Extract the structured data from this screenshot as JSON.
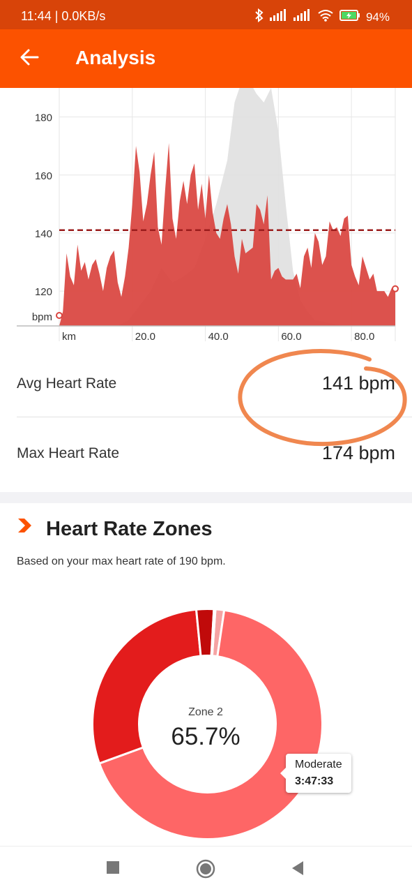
{
  "status": {
    "time_speed": "11:44 | 0.0KB/s",
    "battery": "94%"
  },
  "appbar": {
    "title": "Analysis"
  },
  "chart_data": {
    "type": "area",
    "x_unit": "km",
    "y_unit": "bpm",
    "x_ticks": [
      20.0,
      40.0,
      60.0,
      80.0
    ],
    "x_tick_labels": [
      "km",
      "20.0",
      "40.0",
      "60.0",
      "80.0"
    ],
    "y_ticks": [
      120,
      140,
      160,
      180
    ],
    "ylim": [
      108,
      190
    ],
    "xlim": [
      0,
      92
    ],
    "avg_line": 141,
    "series": [
      {
        "role": "heart rate",
        "color": "#d9453f",
        "x": [
          0,
          1,
          2,
          3,
          4,
          5,
          6,
          7,
          8,
          9,
          10,
          11,
          12,
          13,
          14,
          15,
          16,
          17,
          18,
          19,
          20,
          21,
          22,
          23,
          24,
          25,
          26,
          27,
          28,
          29,
          30,
          31,
          32,
          33,
          34,
          35,
          36,
          37,
          38,
          39,
          40,
          41,
          42,
          43,
          44,
          45,
          46,
          47,
          48,
          49,
          50,
          51,
          52,
          53,
          54,
          55,
          56,
          57,
          58,
          59,
          60,
          61,
          62,
          63,
          64,
          65,
          66,
          67,
          68,
          69,
          70,
          71,
          72,
          73,
          74,
          75,
          76,
          77,
          78,
          79,
          80,
          81,
          82,
          83,
          84,
          85,
          86,
          87,
          88,
          89,
          90,
          91,
          92
        ],
        "y": [
          108,
          113,
          133,
          125,
          122,
          136,
          127,
          130,
          124,
          129,
          131,
          126,
          120,
          128,
          132,
          134,
          123,
          118,
          125,
          135,
          150,
          170,
          161,
          144,
          150,
          160,
          168,
          142,
          136,
          155,
          171,
          145,
          138,
          151,
          158,
          150,
          160,
          164,
          148,
          157,
          145,
          160,
          147,
          140,
          138,
          145,
          150,
          143,
          132,
          126,
          138,
          133,
          134,
          135,
          150,
          148,
          143,
          153,
          124,
          127,
          128,
          125,
          124,
          124,
          124,
          126,
          121,
          132,
          135,
          128,
          140,
          137,
          129,
          132,
          144,
          141,
          142,
          139,
          145,
          146,
          129,
          125,
          122,
          132,
          128,
          124,
          126,
          120,
          120,
          120,
          118,
          121,
          122
        ]
      },
      {
        "role": "elevation",
        "color": "#e0e0e0",
        "x": [
          0,
          4,
          8,
          12,
          16,
          19,
          22,
          25,
          28,
          31,
          34,
          37,
          40,
          43,
          46,
          48,
          50,
          52,
          54,
          56,
          58,
          60,
          62,
          64,
          66,
          68,
          70,
          74,
          78,
          82,
          86,
          90,
          92
        ],
        "y": [
          108,
          108,
          108,
          108,
          108,
          110,
          115,
          120,
          128,
          123,
          125,
          128,
          138,
          150,
          165,
          185,
          200,
          195,
          188,
          185,
          190,
          175,
          150,
          127,
          117,
          113,
          110,
          109,
          108,
          108,
          108,
          108,
          108
        ]
      }
    ]
  },
  "metrics": [
    {
      "label": "Avg Heart Rate",
      "value": "141 bpm"
    },
    {
      "label": "Max Heart Rate",
      "value": "174 bpm"
    }
  ],
  "zones": {
    "title": "Heart Rate Zones",
    "subtitle": "Based on your max heart rate of 190 bpm.",
    "center_label": "Zone 2",
    "center_value": "65.7%",
    "tooltip_title": "Moderate",
    "tooltip_time": "3:47:33",
    "slices": [
      {
        "value": 1.2,
        "color": "#f5a3a3"
      },
      {
        "value": 65.7,
        "color": "#fe6666"
      },
      {
        "value": 28.4,
        "color": "#e31c1c"
      },
      {
        "value": 2.4,
        "color": "#c00a0a"
      },
      {
        "value": 0.2,
        "color": "#8a0000"
      }
    ]
  }
}
